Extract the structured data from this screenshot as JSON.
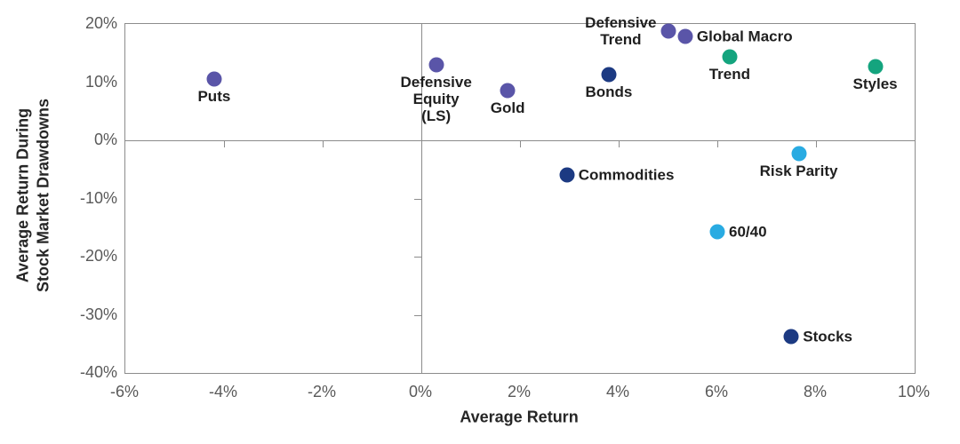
{
  "chart_data": {
    "type": "scatter",
    "title": "",
    "xlabel": "Average Return",
    "ylabel_lines": [
      "Average Return During",
      "Stock Market Drawdowns"
    ],
    "xlim": [
      -6,
      10
    ],
    "ylim": [
      -40,
      20
    ],
    "grid": false,
    "x_tick_values": [
      -6,
      -4,
      -2,
      0,
      2,
      4,
      6,
      8,
      10
    ],
    "x_tick_labels": [
      "-6%",
      "-4%",
      "-2%",
      "0%",
      "2%",
      "4%",
      "6%",
      "8%",
      "10%"
    ],
    "y_tick_values": [
      20,
      10,
      0,
      -10,
      -20,
      -30,
      -40
    ],
    "y_tick_labels": [
      "20%",
      "10%",
      "0%",
      "-10%",
      "-20%",
      "-30%",
      "-40%"
    ],
    "x_axis_tick_marks_on_zero_line": [
      -4,
      -2,
      2,
      4,
      6,
      8
    ],
    "y_axis_tick_marks_on_zero_line": [
      10,
      -10,
      -20,
      -30
    ],
    "colors": {
      "purple": "#5A55A8",
      "navy": "#1C3A82",
      "green": "#14A47E",
      "cyan": "#29ABE2",
      "axis_line": "#8c8c8c",
      "tick_text": "#595959",
      "label_text": "#1f1f1f"
    },
    "points": [
      {
        "label": "Puts",
        "x": -4.2,
        "y": 10.5,
        "color": "#5A55A8",
        "label_position": "below"
      },
      {
        "label": "Defensive\nEquity\n(LS)",
        "x": 0.3,
        "y": 13.0,
        "color": "#5A55A8",
        "label_position": "below"
      },
      {
        "label": "Gold",
        "x": 1.75,
        "y": 8.5,
        "color": "#5A55A8",
        "label_position": "below"
      },
      {
        "label": "Bonds",
        "x": 3.8,
        "y": 11.3,
        "color": "#1C3A82",
        "label_position": "below"
      },
      {
        "label": "Defensive\nTrend",
        "x": 5.0,
        "y": 18.8,
        "color": "#5A55A8",
        "label_position": "left"
      },
      {
        "label": "Global Macro",
        "x": 5.35,
        "y": 17.9,
        "color": "#5A55A8",
        "label_position": "right"
      },
      {
        "label": "Trend",
        "x": 6.25,
        "y": 14.3,
        "color": "#14A47E",
        "label_position": "below"
      },
      {
        "label": "Styles",
        "x": 9.2,
        "y": 12.7,
        "color": "#14A47E",
        "label_position": "below"
      },
      {
        "label": "Commodities",
        "x": 2.95,
        "y": -6.0,
        "color": "#1C3A82",
        "label_position": "right"
      },
      {
        "label": "Risk Parity",
        "x": 7.65,
        "y": -2.3,
        "color": "#29ABE2",
        "label_position": "below"
      },
      {
        "label": "60/40",
        "x": 6.0,
        "y": -15.8,
        "color": "#29ABE2",
        "label_position": "right"
      },
      {
        "label": "Stocks",
        "x": 7.5,
        "y": -33.7,
        "color": "#1C3A82",
        "label_position": "right"
      }
    ]
  }
}
